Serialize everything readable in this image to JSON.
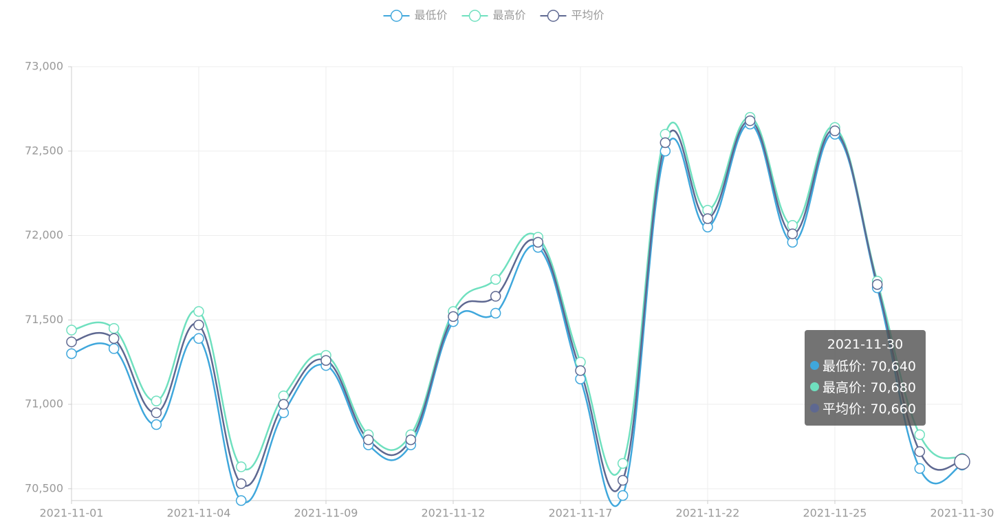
{
  "chart_data": {
    "type": "line",
    "smooth": true,
    "grid": true,
    "categories": [
      "2021-11-01",
      null,
      null,
      "2021-11-04",
      null,
      null,
      "2021-11-09",
      null,
      null,
      "2021-11-12",
      null,
      null,
      "2021-11-17",
      null,
      null,
      "2021-11-22",
      null,
      null,
      "2021-11-25",
      null,
      null,
      "2021-11-30"
    ],
    "series": [
      {
        "name": "最低价",
        "color": "#3fa7dc",
        "values": [
          71300,
          71330,
          70880,
          71390,
          70430,
          70950,
          71230,
          70760,
          70760,
          71490,
          71540,
          71930,
          71150,
          70460,
          72500,
          72050,
          72660,
          71960,
          72600,
          71690,
          70620,
          70640
        ]
      },
      {
        "name": "最高价",
        "color": "#6fe0bf",
        "values": [
          71440,
          71450,
          71020,
          71550,
          70630,
          71050,
          71290,
          70820,
          70820,
          71550,
          71740,
          71990,
          71250,
          70650,
          72600,
          72150,
          72700,
          72060,
          72640,
          71730,
          70820,
          70680
        ]
      },
      {
        "name": "平均价",
        "color": "#5e6891",
        "values": [
          71370,
          71390,
          70950,
          71470,
          70530,
          71000,
          71260,
          70790,
          70790,
          71520,
          71640,
          71960,
          71200,
          70550,
          72550,
          72100,
          72680,
          72010,
          72620,
          71710,
          70720,
          70660
        ]
      }
    ],
    "ylim": [
      70430,
      73000
    ],
    "yticks": [
      {
        "value": 70500,
        "label": "70,500"
      },
      {
        "value": 71000,
        "label": "71,000"
      },
      {
        "value": 71500,
        "label": "71,500"
      },
      {
        "value": 72000,
        "label": "72,000"
      },
      {
        "value": 72500,
        "label": "72,500"
      },
      {
        "value": 73000,
        "label": "73,000"
      }
    ],
    "tooltip": {
      "title": "2021-11-30",
      "lines": [
        "最低价: 70,640",
        "最高价: 70,680",
        "平均价: 70,660"
      ]
    }
  }
}
